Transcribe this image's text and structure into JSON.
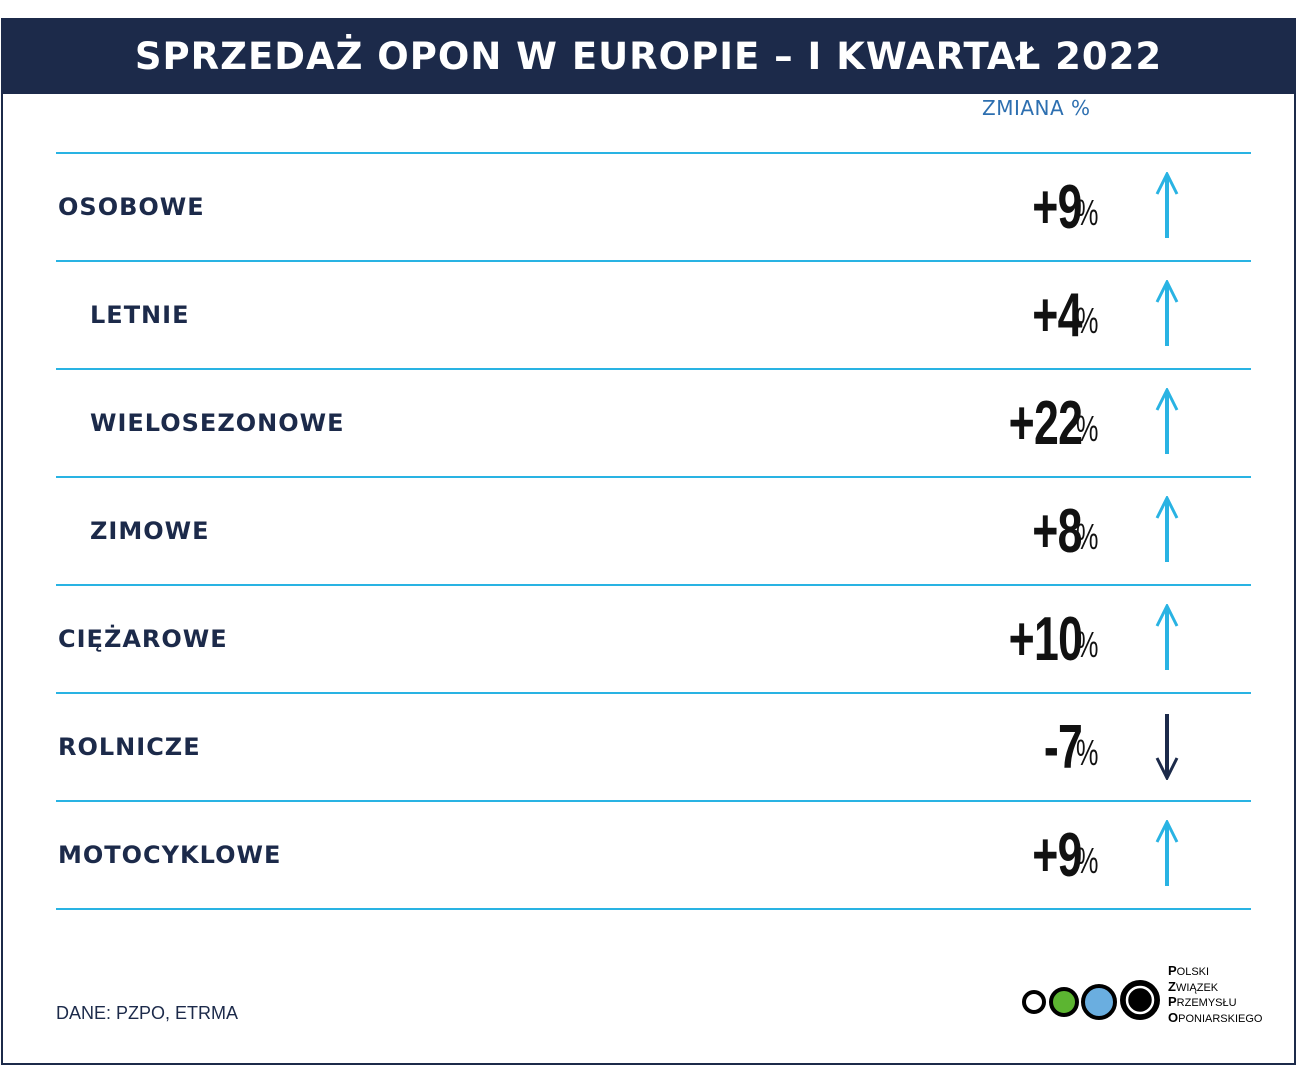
{
  "title": "SPRZEDAŻ OPON W EUROPIE – I KWARTAŁ 2022",
  "column_header": "ZMIANA %",
  "source": "DANE: PZPO, ETRMA",
  "logo": {
    "lines": [
      {
        "initial": "P",
        "rest": "OLSKI"
      },
      {
        "initial": "Z",
        "rest": "WIĄZEK"
      },
      {
        "initial": "P",
        "rest": "RZEMYSŁU"
      },
      {
        "initial": "O",
        "rest": "PONIARSKIEGO"
      }
    ]
  },
  "colors": {
    "banner": "#1c2a4a",
    "divider": "#29b3e3",
    "arrow_up": "#29b3e3",
    "arrow_down": "#1c2a4a",
    "header_text": "#2d6fb0"
  },
  "chart_data": {
    "type": "table",
    "title": "SPRZEDAŻ OPON W EUROPIE – I KWARTAŁ 2022",
    "column": "ZMIANA %",
    "rows": [
      {
        "label": "OSOBOWE",
        "level": 0,
        "value": "+9",
        "unit": "%",
        "change": 9,
        "direction": "up"
      },
      {
        "label": "LETNIE",
        "level": 1,
        "value": "+4",
        "unit": "%",
        "change": 4,
        "direction": "up"
      },
      {
        "label": "WIELOSEZONOWE",
        "level": 1,
        "value": "+22",
        "unit": "%",
        "change": 22,
        "direction": "up"
      },
      {
        "label": "ZIMOWE",
        "level": 1,
        "value": "+8",
        "unit": "%",
        "change": 8,
        "direction": "up"
      },
      {
        "label": "CIĘŻAROWE",
        "level": 0,
        "value": "+10",
        "unit": "%",
        "change": 10,
        "direction": "up"
      },
      {
        "label": "ROLNICZE",
        "level": 0,
        "value": "-7",
        "unit": "%",
        "change": -7,
        "direction": "down"
      },
      {
        "label": "MOTOCYKLOWE",
        "level": 0,
        "value": "+9",
        "unit": "%",
        "change": 9,
        "direction": "up"
      }
    ]
  }
}
